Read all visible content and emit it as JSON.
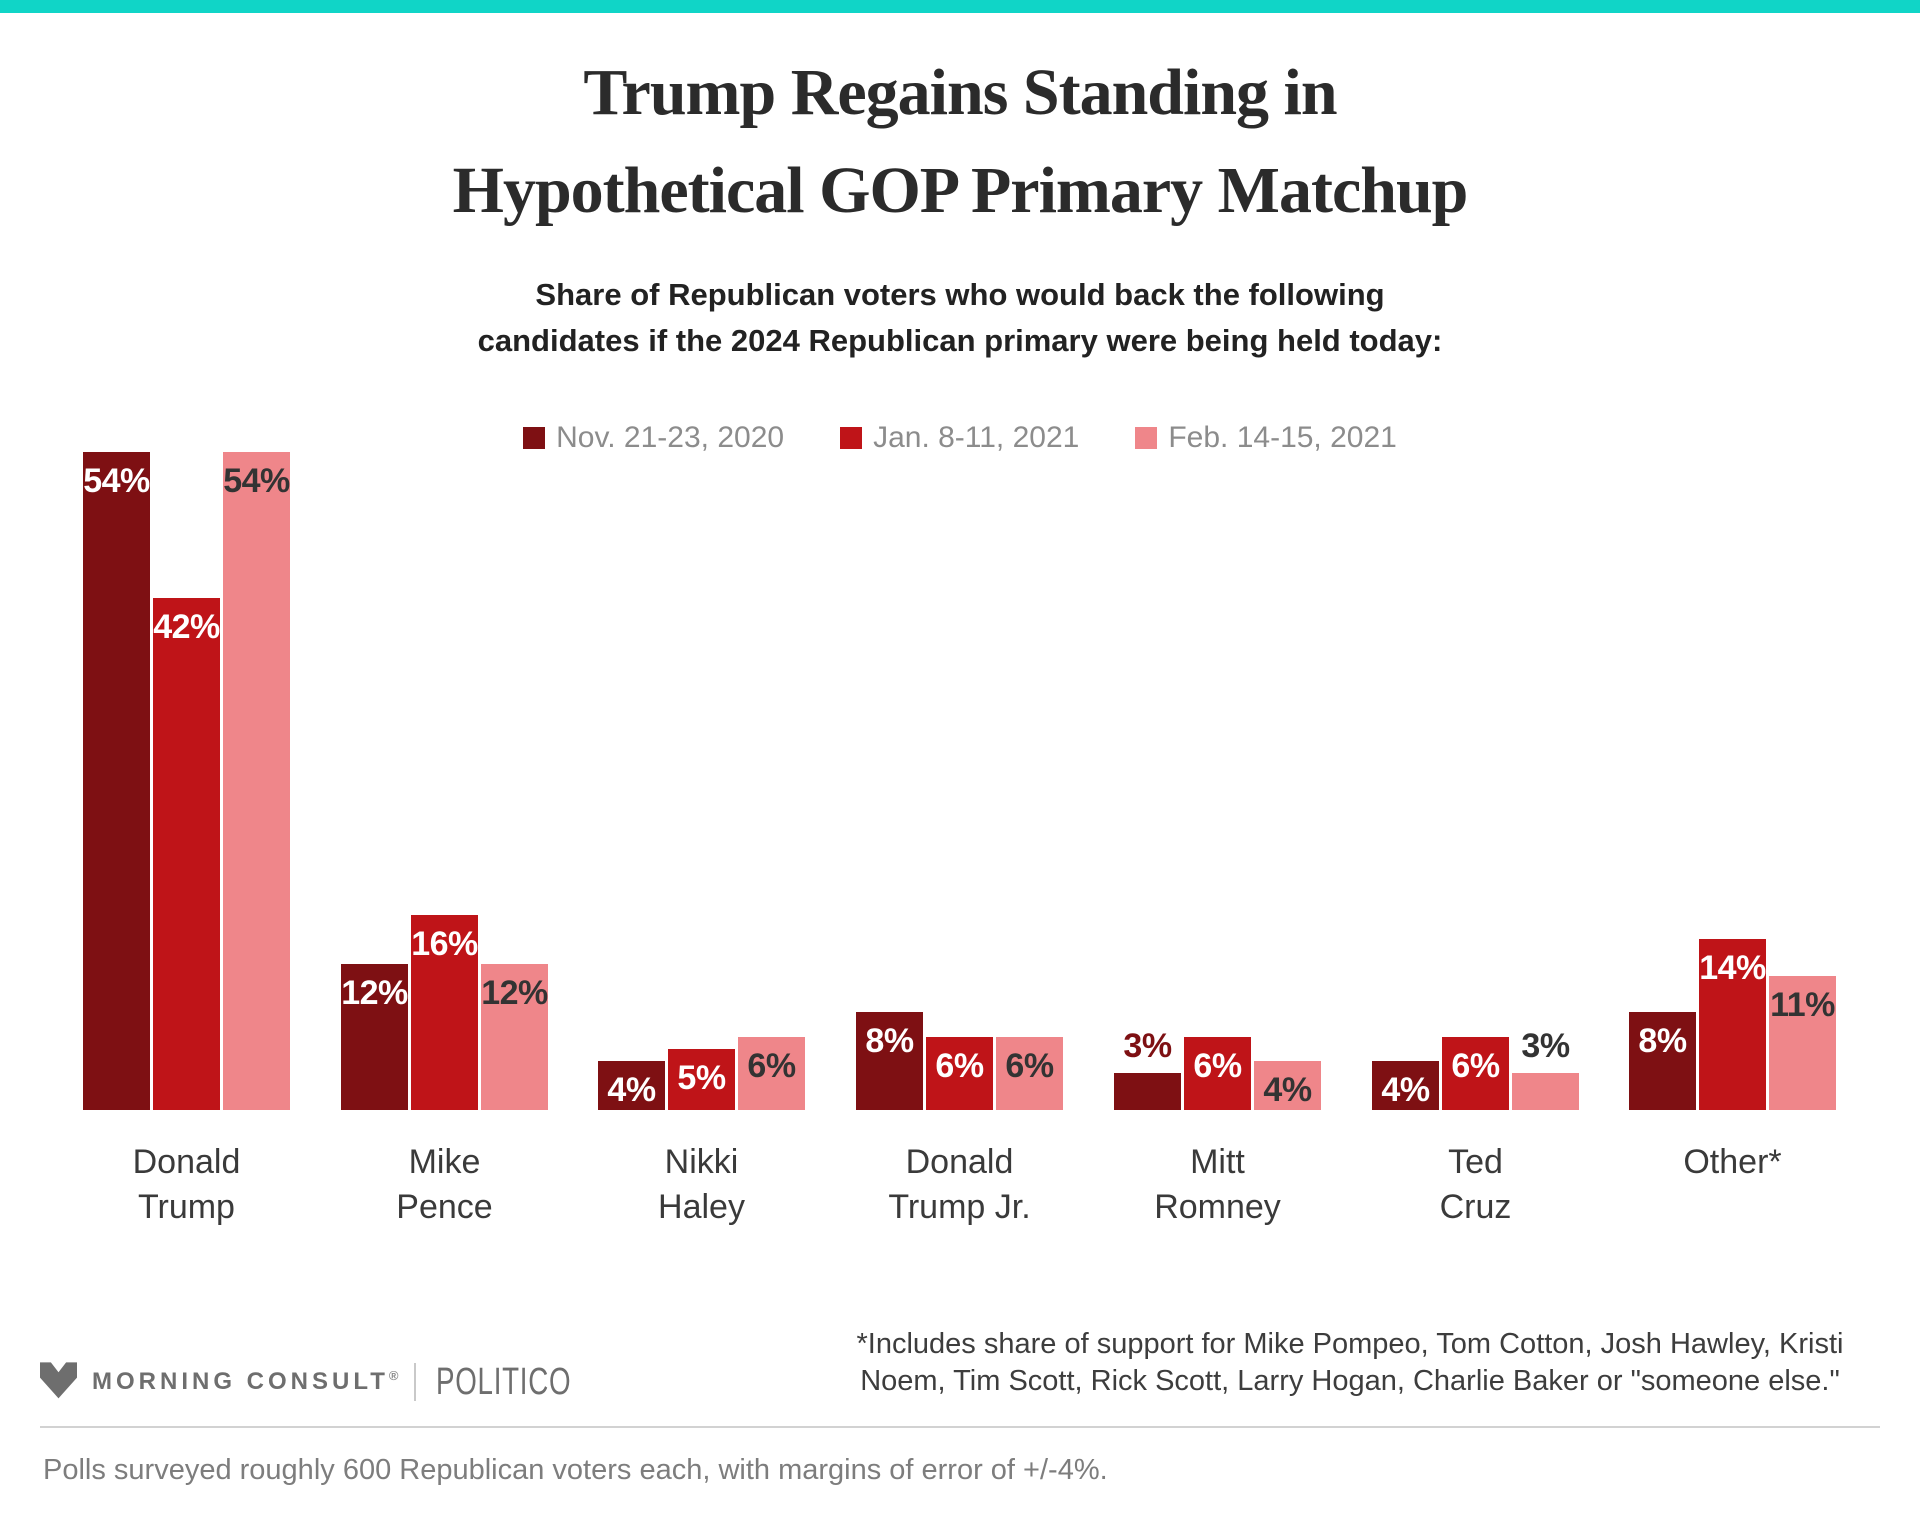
{
  "colors": {
    "accent_teal": "#10d5c7",
    "series_dark_red": "#7e1013",
    "series_red": "#bf1418",
    "series_pink": "#ef868a"
  },
  "header": {
    "title_lines": [
      "Trump Regains Standing in",
      "Hypothetical GOP Primary Matchup"
    ],
    "subtitle_lines": [
      "Share of Republican voters who would back the following",
      "candidates if the 2024 Republican primary were being held today:"
    ]
  },
  "chart_data": {
    "type": "bar",
    "value_suffix": "%",
    "ylim": [
      0,
      54
    ],
    "grid": false,
    "legend_position": "top",
    "categories": [
      "Donald\nTrump",
      "Mike\nPence",
      "Nikki\nHaley",
      "Donald\nTrump Jr.",
      "Mitt\nRomney",
      "Ted\nCruz",
      "Other*"
    ],
    "series": [
      {
        "name": "Nov. 21-23, 2020",
        "color": "#7e1013",
        "label_inside_color": "#ffffff",
        "label_above_color": "#7e1013",
        "values": [
          54,
          12,
          4,
          8,
          3,
          4,
          8
        ]
      },
      {
        "name": "Jan. 8-11, 2021",
        "color": "#bf1418",
        "label_inside_color": "#ffffff",
        "label_above_color": "#bf1418",
        "values": [
          42,
          16,
          5,
          6,
          6,
          6,
          14
        ]
      },
      {
        "name": "Feb. 14-15, 2021",
        "color": "#ef868a",
        "label_inside_color": "#333333",
        "label_above_color": "#333333",
        "values": [
          54,
          12,
          6,
          6,
          4,
          3,
          11
        ]
      }
    ]
  },
  "footer": {
    "morning_consult": "MORNING CONSULT",
    "registered_mark": "®",
    "politico": "POLITICO",
    "footnote_lines": [
      "*Includes share of support for Mike Pompeo, Tom Cotton, Josh Hawley, Kristi",
      "Noem, Tim Scott, Rick Scott, Larry Hogan, Charlie Baker or \"someone else.\""
    ]
  },
  "note": "Polls surveyed roughly 600 Republican voters each, with margins of error of +/-4%."
}
